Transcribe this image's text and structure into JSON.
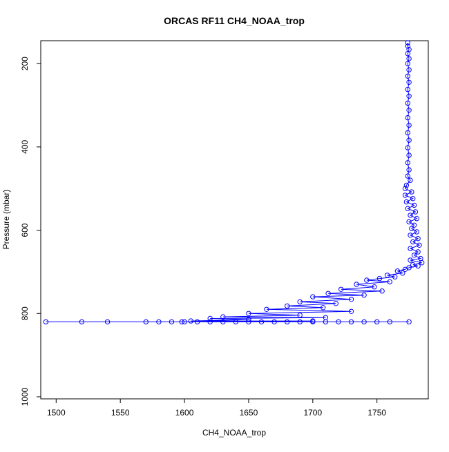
{
  "chart_data": {
    "type": "line",
    "title": "ORCAS RF11 CH4_NOAA_trop",
    "xlabel": "CH4_NOAA_trop",
    "ylabel": "Pressure (mbar)",
    "x_ticks": [
      "1500",
      "1550",
      "1600",
      "1650",
      "1700",
      "1750"
    ],
    "y_ticks": [
      "200",
      "400",
      "600",
      "800",
      "1000"
    ],
    "xlim": [
      1488,
      1790
    ],
    "ylim": [
      1005,
      145
    ],
    "y_reversed": true,
    "grid": false,
    "legend": "none",
    "series_color": "#0000ff",
    "marker": "open-circle",
    "series": [
      {
        "points": [
          [
            1774,
            150
          ],
          [
            1774,
            158
          ],
          [
            1775,
            166
          ],
          [
            1774,
            176
          ],
          [
            1775,
            188
          ],
          [
            1774,
            200
          ],
          [
            1775,
            215
          ],
          [
            1774,
            230
          ],
          [
            1775,
            245
          ],
          [
            1774,
            262
          ],
          [
            1775,
            278
          ],
          [
            1774,
            295
          ],
          [
            1775,
            312
          ],
          [
            1774,
            330
          ],
          [
            1775,
            348
          ],
          [
            1774,
            366
          ],
          [
            1775,
            384
          ],
          [
            1774,
            402
          ],
          [
            1775,
            420
          ],
          [
            1774,
            438
          ],
          [
            1775,
            455
          ],
          [
            1774,
            470
          ],
          [
            1776,
            480
          ],
          [
            1773,
            492
          ],
          [
            1772,
            500
          ],
          [
            1777,
            508
          ],
          [
            1772,
            516
          ],
          [
            1778,
            524
          ],
          [
            1773,
            532
          ],
          [
            1779,
            540
          ],
          [
            1774,
            548
          ],
          [
            1780,
            556
          ],
          [
            1776,
            564
          ],
          [
            1781,
            572
          ],
          [
            1775,
            580
          ],
          [
            1779,
            588
          ],
          [
            1777,
            596
          ],
          [
            1781,
            604
          ],
          [
            1776,
            612
          ],
          [
            1782,
            620
          ],
          [
            1778,
            628
          ],
          [
            1783,
            636
          ],
          [
            1776,
            644
          ],
          [
            1782,
            652
          ],
          [
            1779,
            660
          ],
          [
            1784,
            668
          ],
          [
            1776,
            672
          ],
          [
            1785,
            678
          ],
          [
            1778,
            683
          ],
          [
            1782,
            686
          ],
          [
            1775,
            690
          ],
          [
            1772,
            694
          ],
          [
            1766,
            698
          ],
          [
            1770,
            703
          ],
          [
            1758,
            708
          ],
          [
            1764,
            712
          ],
          [
            1752,
            716
          ],
          [
            1742,
            720
          ],
          [
            1760,
            724
          ],
          [
            1734,
            730
          ],
          [
            1748,
            736
          ],
          [
            1722,
            742
          ],
          [
            1754,
            746
          ],
          [
            1712,
            752
          ],
          [
            1740,
            756
          ],
          [
            1700,
            760
          ],
          [
            1730,
            766
          ],
          [
            1690,
            772
          ],
          [
            1718,
            776
          ],
          [
            1680,
            782
          ],
          [
            1708,
            786
          ],
          [
            1664,
            790
          ],
          [
            1730,
            795
          ],
          [
            1650,
            800
          ],
          [
            1690,
            804
          ],
          [
            1630,
            808
          ],
          [
            1710,
            810
          ],
          [
            1620,
            812
          ],
          [
            1650,
            815
          ],
          [
            1605,
            818
          ],
          [
            1700,
            818
          ],
          [
            1598,
            820
          ],
          [
            1580,
            820
          ],
          [
            1570,
            820
          ],
          [
            1540,
            820
          ],
          [
            1520,
            820
          ],
          [
            1492,
            820
          ],
          [
            1600,
            820
          ],
          [
            1620,
            820
          ],
          [
            1640,
            820
          ],
          [
            1660,
            820
          ],
          [
            1680,
            820
          ],
          [
            1700,
            820
          ],
          [
            1720,
            820
          ],
          [
            1740,
            820
          ],
          [
            1760,
            820
          ],
          [
            1775,
            820
          ],
          [
            1750,
            820
          ],
          [
            1730,
            820
          ],
          [
            1710,
            820
          ],
          [
            1690,
            820
          ],
          [
            1670,
            820
          ],
          [
            1650,
            820
          ],
          [
            1630,
            820
          ],
          [
            1610,
            820
          ],
          [
            1590,
            820
          ]
        ]
      }
    ]
  }
}
